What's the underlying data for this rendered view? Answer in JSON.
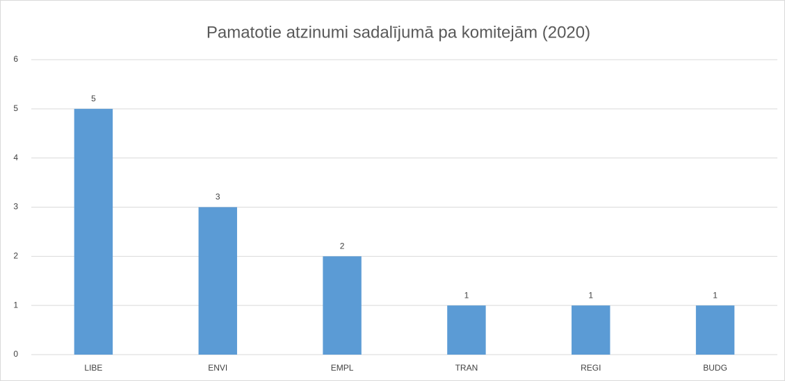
{
  "chart_data": {
    "type": "bar",
    "title": "Pamatotie atzinumi sadalījumā pa komitejām (2020)",
    "categories": [
      "LIBE",
      "ENVI",
      "EMPL",
      "TRAN",
      "REGI",
      "BUDG"
    ],
    "values": [
      5,
      3,
      2,
      1,
      1,
      1
    ],
    "color": "#5b9bd5",
    "ylim": [
      0,
      6
    ],
    "yticks": [
      0,
      1,
      2,
      3,
      4,
      5,
      6
    ],
    "grid": true,
    "data_labels": true
  }
}
